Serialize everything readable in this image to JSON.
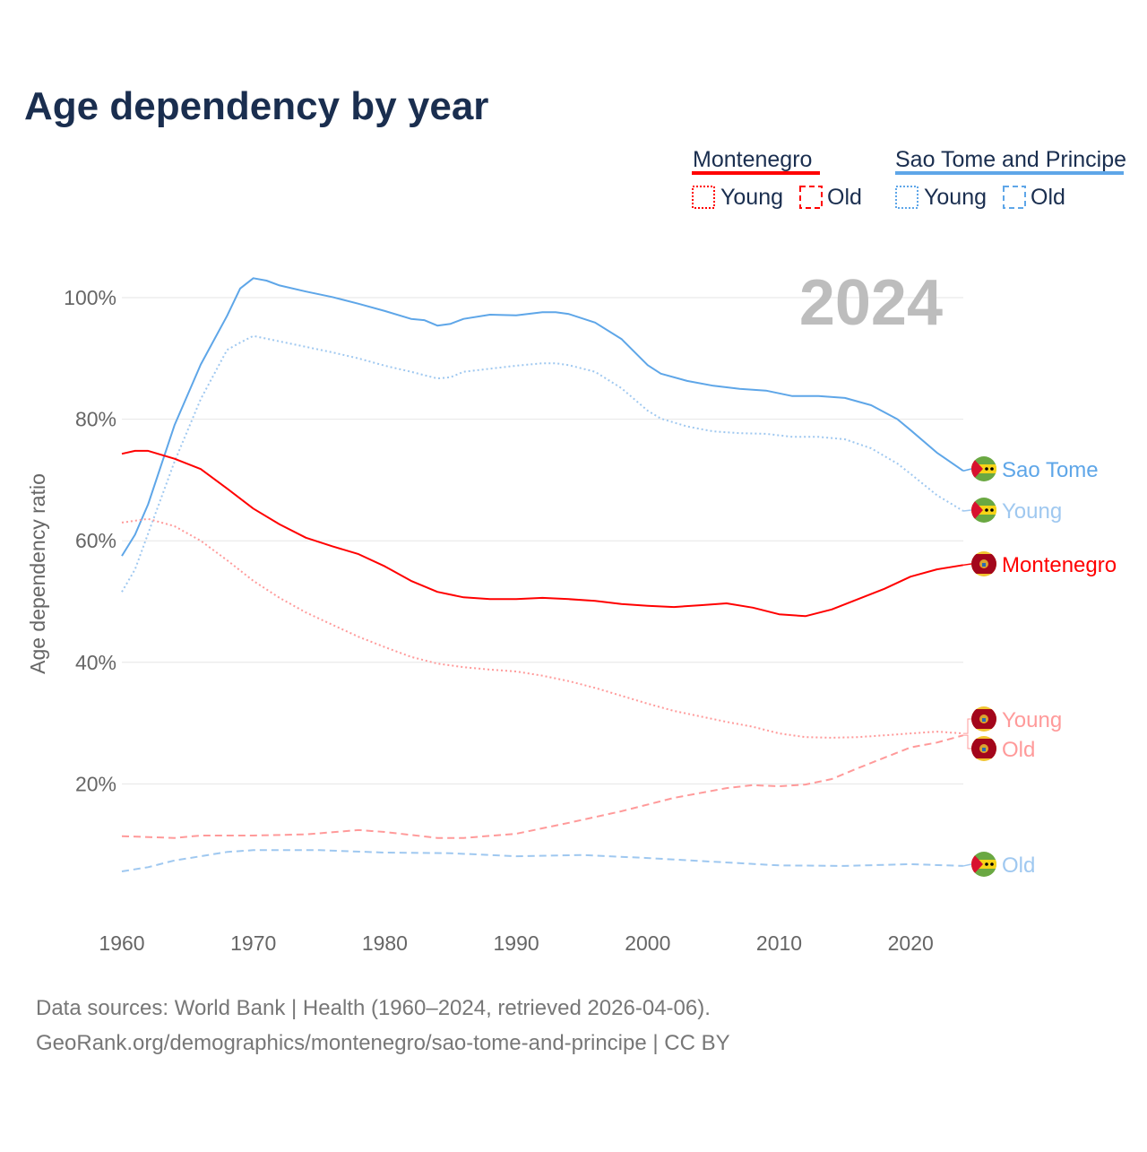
{
  "chart_data": {
    "type": "line",
    "title": "Age dependency by year",
    "ylabel": "Age dependency ratio",
    "xlabel": "",
    "xlim": [
      1960,
      2024
    ],
    "ylim": [
      0,
      110
    ],
    "x_ticks": [
      "1960",
      "1970",
      "1980",
      "1990",
      "2000",
      "2010",
      "2020"
    ],
    "y_ticks": [
      "20%",
      "40%",
      "60%",
      "80%",
      "100%"
    ],
    "grid": true,
    "year_badge": "2024",
    "legend": {
      "placement": "top-right",
      "groups": [
        {
          "country": "Montenegro",
          "color": "#ff0000",
          "items": [
            "Young",
            "Old"
          ]
        },
        {
          "country": "Sao Tome and Principe",
          "color": "#5ea6e8",
          "items": [
            "Young",
            "Old"
          ]
        }
      ]
    },
    "series": [
      {
        "name": "Sao Tome and Principe",
        "label": "Sao Tome",
        "style": "solid",
        "color": "#5ea6e8",
        "x": [
          1960,
          1961,
          1962,
          1964,
          1966,
          1968,
          1969,
          1970,
          1971,
          1972,
          1974,
          1976,
          1978,
          1980,
          1982,
          1983,
          1984,
          1985,
          1986,
          1988,
          1990,
          1992,
          1993,
          1994,
          1996,
          1998,
          2000,
          2001,
          2003,
          2005,
          2007,
          2009,
          2011,
          2013,
          2015,
          2017,
          2019,
          2020,
          2022,
          2024
        ],
        "values": [
          57.5,
          61,
          66,
          79,
          89,
          97,
          101.5,
          103.2,
          102.8,
          102,
          101,
          100.1,
          99,
          97.8,
          96.5,
          96.3,
          95.4,
          95.7,
          96.5,
          97.2,
          97.1,
          97.6,
          97.6,
          97.3,
          95.9,
          93.2,
          88.9,
          87.5,
          86.3,
          85.5,
          85,
          84.7,
          83.8,
          83.8,
          83.5,
          82.3,
          80,
          78.2,
          74.5,
          71.5
        ]
      },
      {
        "name": "Sao Tome and Principe Young",
        "label": "Young",
        "style": "dotted",
        "color": "#9fc8f0",
        "x": [
          1960,
          1961,
          1962,
          1964,
          1966,
          1968,
          1969,
          1970,
          1972,
          1974,
          1976,
          1978,
          1980,
          1982,
          1984,
          1985,
          1986,
          1988,
          1990,
          1992,
          1993,
          1994,
          1996,
          1998,
          2000,
          2001,
          2003,
          2005,
          2007,
          2009,
          2011,
          2013,
          2015,
          2017,
          2019,
          2020,
          2022,
          2024
        ],
        "values": [
          51.6,
          55.3,
          61.2,
          73,
          83.3,
          91.4,
          92.6,
          93.7,
          92.8,
          91.9,
          91,
          90,
          88.8,
          87.8,
          86.7,
          86.9,
          87.8,
          88.3,
          88.8,
          89.2,
          89.2,
          88.9,
          87.8,
          85.1,
          81.4,
          80.1,
          78.8,
          78,
          77.7,
          77.6,
          77.1,
          77.1,
          76.7,
          75.2,
          72.7,
          71,
          67.5,
          64.9
        ]
      },
      {
        "name": "Sao Tome and Principe Old",
        "label": "Old",
        "style": "dashed",
        "color": "#9fc8f0",
        "x": [
          1960,
          1962,
          1964,
          1966,
          1968,
          1970,
          1975,
          1980,
          1985,
          1990,
          1995,
          2000,
          2005,
          2010,
          2015,
          2020,
          2024
        ],
        "values": [
          5.6,
          6.3,
          7.4,
          8.1,
          8.8,
          9.1,
          9.1,
          8.7,
          8.6,
          8.1,
          8.3,
          7.8,
          7.2,
          6.6,
          6.5,
          6.8,
          6.5
        ]
      },
      {
        "name": "Montenegro",
        "label": "Montenegro",
        "style": "solid",
        "color": "#ff0000",
        "x": [
          1960,
          1961,
          1962,
          1964,
          1966,
          1968,
          1970,
          1972,
          1974,
          1976,
          1978,
          1980,
          1982,
          1984,
          1986,
          1988,
          1990,
          1992,
          1994,
          1996,
          1998,
          2000,
          2002,
          2004,
          2006,
          2008,
          2010,
          2012,
          2014,
          2016,
          2018,
          2020,
          2022,
          2024
        ],
        "values": [
          74.3,
          74.8,
          74.8,
          73.5,
          71.8,
          68.6,
          65.3,
          62.7,
          60.5,
          59.1,
          57.8,
          55.8,
          53.4,
          51.6,
          50.7,
          50.4,
          50.4,
          50.6,
          50.4,
          50.1,
          49.6,
          49.3,
          49.1,
          49.4,
          49.7,
          49,
          47.9,
          47.6,
          48.7,
          50.4,
          52.1,
          54.1,
          55.3,
          56
        ]
      },
      {
        "name": "Montenegro Young",
        "label": "Young",
        "style": "dotted",
        "color": "#ff9a9a",
        "x": [
          1960,
          1962,
          1964,
          1966,
          1968,
          1970,
          1972,
          1974,
          1976,
          1978,
          1980,
          1982,
          1984,
          1986,
          1988,
          1990,
          1992,
          1994,
          1996,
          1998,
          2000,
          2002,
          2004,
          2006,
          2008,
          2010,
          2012,
          2014,
          2016,
          2018,
          2020,
          2022,
          2024
        ],
        "values": [
          63,
          63.6,
          62.4,
          60,
          56.8,
          53.4,
          50.6,
          48.2,
          46.2,
          44.2,
          42.5,
          40.9,
          39.8,
          39.2,
          38.8,
          38.5,
          37.8,
          36.9,
          35.8,
          34.5,
          33.2,
          32,
          31.1,
          30.2,
          29.4,
          28.3,
          27.7,
          27.6,
          27.7,
          28,
          28.3,
          28.6,
          28.3
        ]
      },
      {
        "name": "Montenegro Old",
        "label": "Old",
        "style": "dashed",
        "color": "#ff9a9a",
        "x": [
          1960,
          1964,
          1966,
          1970,
          1974,
          1978,
          1980,
          1984,
          1986,
          1990,
          1994,
          1998,
          2002,
          2006,
          2008,
          2010,
          2012,
          2014,
          2016,
          2018,
          2020,
          2022,
          2024
        ],
        "values": [
          11.4,
          11.1,
          11.5,
          11.5,
          11.7,
          12.4,
          12.1,
          11.1,
          11.1,
          11.8,
          13.6,
          15.5,
          17.7,
          19.3,
          19.8,
          19.6,
          19.9,
          20.8,
          22.6,
          24.3,
          26,
          26.8,
          28
        ]
      }
    ]
  },
  "footer": {
    "line1": "Data sources: World Bank | Health (1960–2024, retrieved 2026-04-06).",
    "line2": "GeoRank.org/demographics/montenegro/sao-tome-and-principe | CC BY"
  }
}
